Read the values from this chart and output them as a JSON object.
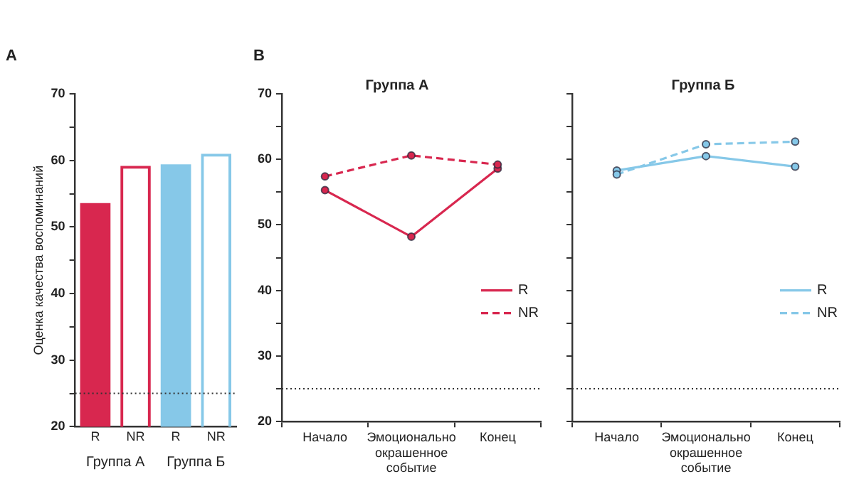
{
  "chart_data": [
    {
      "type": "bar",
      "ylabel": "Оценка качества воспоминаний",
      "categories": [
        "R",
        "NR",
        "R",
        "NR"
      ],
      "values": [
        53.6,
        59.2,
        59.4,
        61.0
      ],
      "colors": [
        "#d8274f",
        "#d8274f",
        "#86c8e8",
        "#86c8e8"
      ],
      "ylim": [
        20,
        70
      ],
      "yticks": [
        20,
        {
          "value": 25,
          "label": null
        },
        30,
        {
          "value": 35,
          "label": null
        },
        40,
        {
          "value": 45,
          "label": null
        },
        50,
        {
          "value": 55,
          "label": null
        },
        60,
        {
          "value": 65,
          "label": null
        },
        70
      ],
      "grid": false,
      "legend": false,
      "annotations": [
        "A",
        "Группа А",
        "Группа Б"
      ],
      "ref_lines": [
        {
          "axis": "y",
          "value": 25,
          "label": null,
          "color": "#333333",
          "line_style": "dotted"
        }
      ]
    },
    {
      "type": "line",
      "title": "Группа А",
      "categories": [
        "Начало",
        "Эмоционально окрашенное событие",
        "Конец"
      ],
      "series": [
        {
          "name": "R",
          "color": "#d8274f",
          "values": [
            55.3,
            48.2,
            58.6
          ],
          "line_style": "solid"
        },
        {
          "name": "NR",
          "color": "#d8274f",
          "values": [
            57.4,
            60.6,
            59.2
          ],
          "line_style": "dashed"
        }
      ],
      "ylim": [
        20,
        70
      ],
      "yticks": [
        20,
        {
          "value": 25,
          "label": null
        },
        30,
        {
          "value": 35,
          "label": null
        },
        40,
        {
          "value": 45,
          "label": null
        },
        50,
        {
          "value": 55,
          "label": null
        },
        60,
        {
          "value": 65,
          "label": null
        },
        70
      ],
      "grid": false,
      "legend": "right",
      "marker": "circle",
      "annotations": [
        "B"
      ],
      "ref_lines": [
        {
          "axis": "y",
          "value": 25,
          "label": null,
          "color": "#333333",
          "line_style": "dotted"
        }
      ]
    },
    {
      "type": "line",
      "title": "Группа Б",
      "categories": [
        "Начало",
        "Эмоционально окрашенное событие",
        "Конец"
      ],
      "series": [
        {
          "name": "R",
          "color": "#86c8e8",
          "values": [
            58.3,
            60.5,
            58.9
          ],
          "line_style": "solid"
        },
        {
          "name": "NR",
          "color": "#86c8e8",
          "values": [
            57.7,
            62.3,
            62.7
          ],
          "line_style": "dashed"
        }
      ],
      "ylim": [
        20,
        70
      ],
      "yticks": [
        20,
        {
          "value": 25,
          "label": null
        },
        30,
        {
          "value": 35,
          "label": null
        },
        40,
        {
          "value": 45,
          "label": null
        },
        50,
        {
          "value": 55,
          "label": null
        },
        60,
        {
          "value": 65,
          "label": null
        },
        70
      ],
      "grid": false,
      "legend": "right",
      "marker": "circle",
      "tick_labels": "x",
      "ref_lines": [
        {
          "axis": "y",
          "value": 25,
          "label": null,
          "color": "#333333",
          "line_style": "dotted"
        }
      ]
    }
  ]
}
